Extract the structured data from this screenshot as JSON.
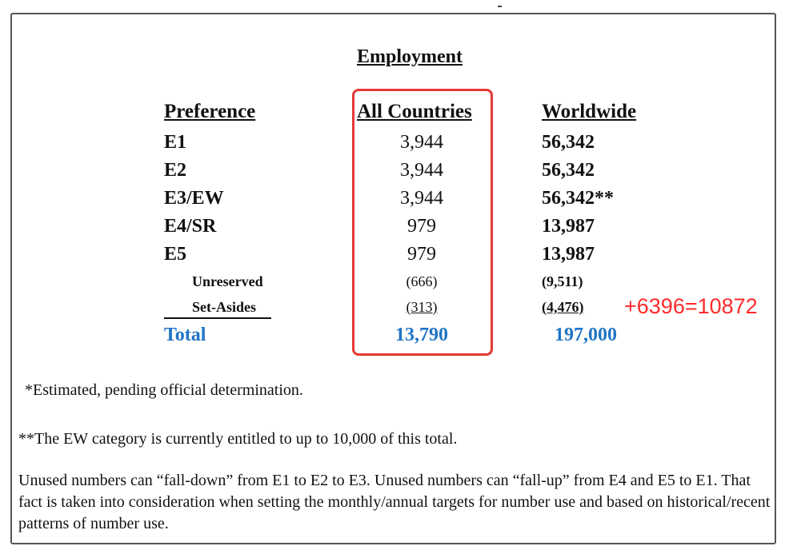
{
  "document": {
    "title": "Employment",
    "headers": {
      "preference": "Preference",
      "all_countries": "All Countries",
      "worldwide": "Worldwide"
    },
    "rows": [
      {
        "pref": "E1",
        "all": "3,944",
        "ww": "56,342"
      },
      {
        "pref": "E2",
        "all": "3,944",
        "ww": "56,342"
      },
      {
        "pref": "E3/EW",
        "all": "3,944",
        "ww": "56,342**"
      },
      {
        "pref": "E4/SR",
        "all": "979",
        "ww": "13,987"
      },
      {
        "pref": "E5",
        "all": "979",
        "ww": "13,987"
      }
    ],
    "sub_rows": [
      {
        "pref": "Unreserved",
        "all": "(666)",
        "ww": "(9,511)"
      },
      {
        "pref": "Set-Asides",
        "all": "(313)",
        "ww": "(4,476)"
      }
    ],
    "total": {
      "label": "Total",
      "all": "13,790",
      "ww": "197,000"
    },
    "annotation": "+6396=10872",
    "footnote_1": "*Estimated, pending official determination.",
    "footnote_2": "**The EW category is currently entitled to up to 10,000 of this total.",
    "paragraph": "Unused numbers can “fall-down” from E1 to E2 to E3.  Unused numbers can “fall-up” from E4 and E5 to E1.  That fact is taken into consideration when setting the monthly/annual targets for number use and based on historical/recent patterns of number use."
  },
  "colors": {
    "total_blue": "#1f74c4",
    "highlight_red": "#e53935",
    "annotation_red": "#ff2a2a"
  }
}
